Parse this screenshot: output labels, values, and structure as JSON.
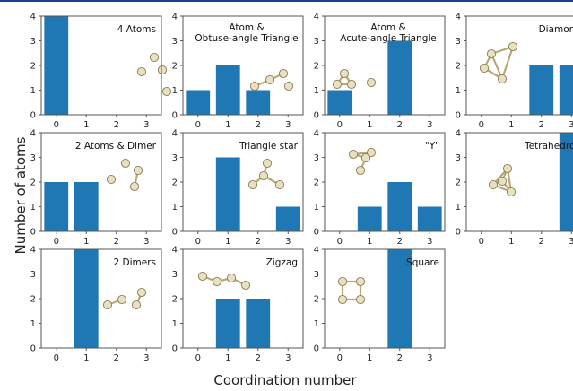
{
  "figure": {
    "ylabel": "Number of atoms",
    "xlabel": "Coordination number",
    "colors": {
      "bar": "#1f77b4",
      "atom_fill": "#e9e0c2",
      "atom_stroke": "#8a7d55",
      "bond": "#b7a976",
      "frame": "#555555"
    }
  },
  "chart_data": [
    {
      "type": "bar",
      "title_lines": [
        "4 Atoms"
      ],
      "categories": [
        "0",
        "1",
        "2",
        "3"
      ],
      "values": [
        4,
        0,
        0,
        0
      ],
      "ylim": [
        0,
        4
      ],
      "yticks": [
        "0",
        "1",
        "2",
        "3",
        "4"
      ],
      "icon": "four-separate-atoms"
    },
    {
      "type": "bar",
      "title_lines": [
        "Atom &",
        "Obtuse-angle Triangle"
      ],
      "categories": [
        "0",
        "1",
        "2",
        "3"
      ],
      "values": [
        1,
        2,
        1,
        0
      ],
      "ylim": [
        0,
        4
      ],
      "yticks": [
        "0",
        "1",
        "2",
        "3",
        "4"
      ],
      "icon": "atom-and-obtuse-chain"
    },
    {
      "type": "bar",
      "title_lines": [
        "Atom &",
        "Acute-angle Triangle"
      ],
      "categories": [
        "0",
        "1",
        "2",
        "3"
      ],
      "values": [
        1,
        0,
        3,
        0
      ],
      "ylim": [
        0,
        4
      ],
      "yticks": [
        "0",
        "1",
        "2",
        "3",
        "4"
      ],
      "icon": "triangle-and-atom"
    },
    {
      "type": "bar",
      "title_lines": [
        "Diamond"
      ],
      "categories": [
        "0",
        "1",
        "2",
        "3"
      ],
      "values": [
        0,
        0,
        2,
        2
      ],
      "ylim": [
        0,
        4
      ],
      "yticks": [
        "0",
        "1",
        "2",
        "3",
        "4"
      ],
      "icon": "diamond-cluster"
    },
    {
      "type": "bar",
      "title_lines": [
        "2 Atoms & Dimer"
      ],
      "categories": [
        "0",
        "1",
        "2",
        "3"
      ],
      "values": [
        2,
        2,
        0,
        0
      ],
      "ylim": [
        0,
        4
      ],
      "yticks": [
        "0",
        "1",
        "2",
        "3",
        "4"
      ],
      "icon": "two-atoms-and-dimer"
    },
    {
      "type": "bar",
      "title_lines": [
        "Triangle star"
      ],
      "categories": [
        "0",
        "1",
        "2",
        "3"
      ],
      "values": [
        0,
        3,
        0,
        1
      ],
      "ylim": [
        0,
        4
      ],
      "yticks": [
        "0",
        "1",
        "2",
        "3",
        "4"
      ],
      "icon": "star-cluster"
    },
    {
      "type": "bar",
      "title_lines": [
        "\"Y\""
      ],
      "categories": [
        "0",
        "1",
        "2",
        "3"
      ],
      "values": [
        0,
        1,
        2,
        1
      ],
      "ylim": [
        0,
        4
      ],
      "yticks": [
        "0",
        "1",
        "2",
        "3",
        "4"
      ],
      "icon": "y-cluster"
    },
    {
      "type": "bar",
      "title_lines": [
        "Tetrahedron"
      ],
      "categories": [
        "0",
        "1",
        "2",
        "3"
      ],
      "values": [
        0,
        0,
        0,
        4
      ],
      "ylim": [
        0,
        4
      ],
      "yticks": [
        "0",
        "1",
        "2",
        "3",
        "4"
      ],
      "icon": "tetrahedron-cluster"
    },
    {
      "type": "bar",
      "title_lines": [
        "2 Dimers"
      ],
      "categories": [
        "0",
        "1",
        "2",
        "3"
      ],
      "values": [
        0,
        4,
        0,
        0
      ],
      "ylim": [
        0,
        4
      ],
      "yticks": [
        "0",
        "1",
        "2",
        "3",
        "4"
      ],
      "icon": "two-dimers"
    },
    {
      "type": "bar",
      "title_lines": [
        "Zigzag"
      ],
      "categories": [
        "0",
        "1",
        "2",
        "3"
      ],
      "values": [
        0,
        2,
        2,
        0
      ],
      "ylim": [
        0,
        4
      ],
      "yticks": [
        "0",
        "1",
        "2",
        "3",
        "4"
      ],
      "icon": "zigzag-chain"
    },
    {
      "type": "bar",
      "title_lines": [
        "Square"
      ],
      "categories": [
        "0",
        "1",
        "2",
        "3"
      ],
      "values": [
        0,
        0,
        4,
        0
      ],
      "ylim": [
        0,
        4
      ],
      "yticks": [
        "0",
        "1",
        "2",
        "3",
        "4"
      ],
      "icon": "square-cluster"
    }
  ]
}
